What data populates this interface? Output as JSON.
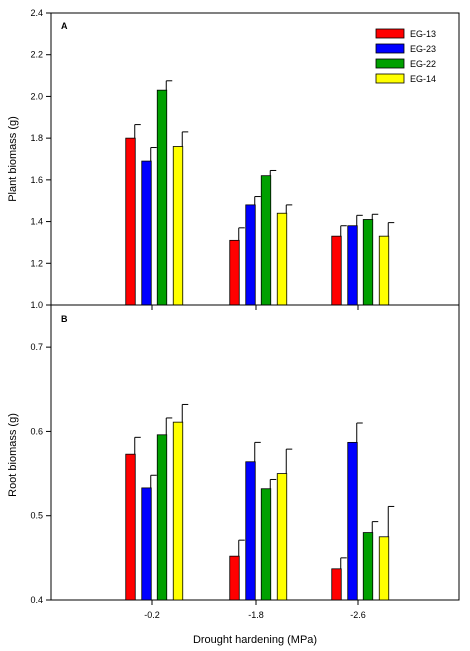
{
  "chart_data": [
    {
      "type": "bar",
      "panel_label": "A",
      "categories": [
        "-0.2",
        "-1.8",
        "-2.6"
      ],
      "ylabel": "Plant biomass (g)",
      "ylim": [
        1.0,
        2.4
      ],
      "yticks": [
        "1.0",
        "1.2",
        "1.4",
        "1.6",
        "1.8",
        "2.0",
        "2.2",
        "2.4"
      ],
      "grid": false,
      "legend_position": "top-right",
      "series": [
        {
          "name": "EG-13",
          "color": "#ff0000",
          "values": [
            1.8,
            1.31,
            1.33
          ],
          "errors": [
            0.065,
            0.06,
            0.05
          ]
        },
        {
          "name": "EG-23",
          "color": "#0000ff",
          "values": [
            1.69,
            1.48,
            1.38
          ],
          "errors": [
            0.065,
            0.04,
            0.05
          ]
        },
        {
          "name": "EG-22",
          "color": "#00a000",
          "values": [
            2.03,
            1.62,
            1.41
          ],
          "errors": [
            0.045,
            0.025,
            0.025
          ]
        },
        {
          "name": "EG-14",
          "color": "#ffff00",
          "values": [
            1.76,
            1.44,
            1.33
          ],
          "errors": [
            0.07,
            0.04,
            0.065
          ]
        }
      ]
    },
    {
      "type": "bar",
      "panel_label": "B",
      "categories": [
        "-0.2",
        "-1.8",
        "-2.6"
      ],
      "xlabel": "Drought hardening (MPa)",
      "ylabel": "Root biomass (g)",
      "ylim": [
        0.4,
        0.75
      ],
      "yticks": [
        "0.4",
        "0.5",
        "0.6",
        "0.7"
      ],
      "grid": false,
      "series": [
        {
          "name": "EG-13",
          "color": "#ff0000",
          "values": [
            0.573,
            0.452,
            0.437
          ],
          "errors": [
            0.02,
            0.019,
            0.013
          ]
        },
        {
          "name": "EG-23",
          "color": "#0000ff",
          "values": [
            0.533,
            0.564,
            0.587
          ],
          "errors": [
            0.015,
            0.023,
            0.023
          ]
        },
        {
          "name": "EG-22",
          "color": "#00a000",
          "values": [
            0.596,
            0.532,
            0.48
          ],
          "errors": [
            0.02,
            0.011,
            0.013
          ]
        },
        {
          "name": "EG-14",
          "color": "#ffff00",
          "values": [
            0.611,
            0.55,
            0.475
          ],
          "errors": [
            0.021,
            0.029,
            0.036
          ]
        }
      ]
    }
  ]
}
